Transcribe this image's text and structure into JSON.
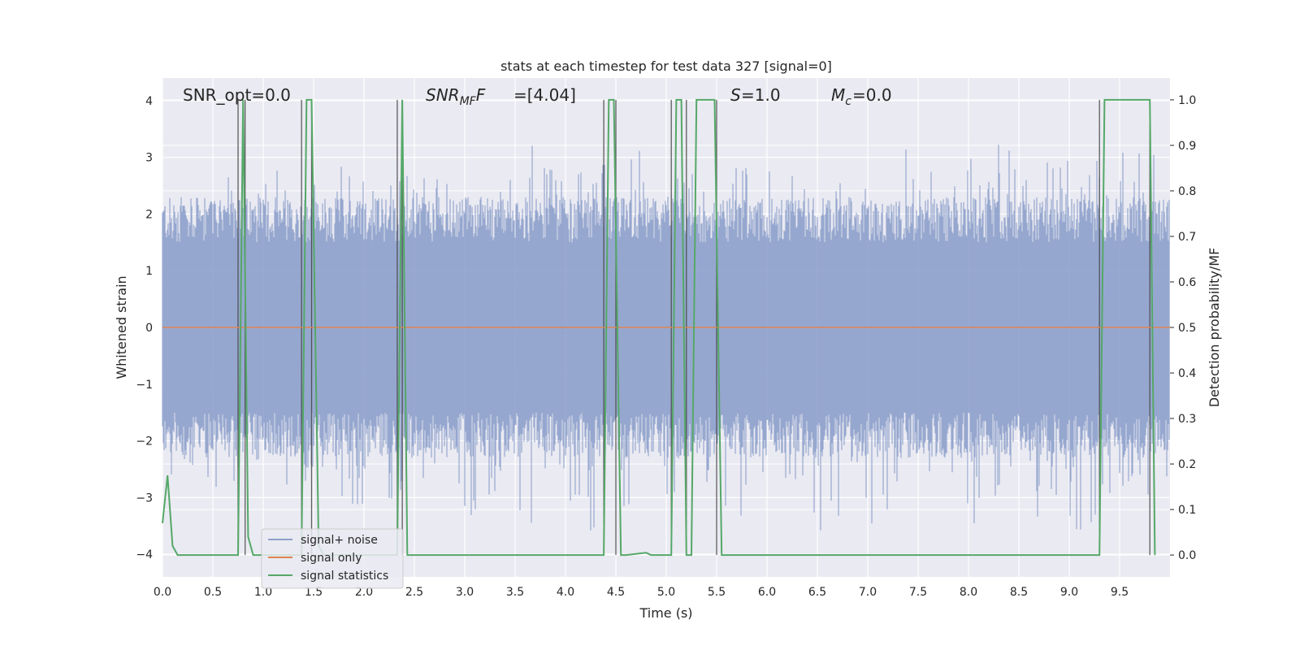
{
  "chart_data": {
    "type": "line",
    "title": "stats at each timestep for test data 327 [signal=0]",
    "xlabel": "Time (s)",
    "ylabel": "Whitened strain",
    "y2label": "Detection probability/MF",
    "xlim": [
      0.0,
      10.0
    ],
    "ylim": [
      -4.4,
      4.4
    ],
    "y2lim": [
      -0.048,
      1.048
    ],
    "x_ticks": [
      "0.0",
      "0.5",
      "1.0",
      "1.5",
      "2.0",
      "2.5",
      "3.0",
      "3.5",
      "4.0",
      "4.5",
      "5.0",
      "5.5",
      "6.0",
      "6.5",
      "7.0",
      "7.5",
      "8.0",
      "8.5",
      "9.0",
      "9.5"
    ],
    "y_ticks": [
      "−4",
      "−3",
      "−2",
      "−1",
      "0",
      "1",
      "2",
      "3",
      "4"
    ],
    "y2_ticks": [
      "0.0",
      "0.1",
      "0.2",
      "0.3",
      "0.4",
      "0.5",
      "0.6",
      "0.7",
      "0.8",
      "0.9",
      "1.0"
    ],
    "grid": true,
    "legend_placement": "lower-left",
    "annotations": {
      "snr_opt": "SNR_opt=0.0",
      "snr_mf": "=[4.04]",
      "s": "=1.0",
      "mc": "=0.0"
    },
    "series": [
      {
        "name": "signal+ noise",
        "color": "#8da0cb",
        "note_values": "dense noise band approx between -2 and +2, peaks to about ±4",
        "envelope_upper": [
          2.6,
          2.5,
          2.7,
          2.6,
          2.8,
          2.6,
          2.7,
          3.1,
          3.0,
          2.8,
          2.9,
          2.7,
          2.6,
          2.8,
          3.4,
          2.9,
          3.0,
          2.9,
          3.3,
          2.7,
          3.0,
          2.9,
          3.2,
          2.9,
          2.8,
          3.0,
          3.0,
          2.8,
          2.9,
          3.3,
          3.0,
          2.9,
          3.0,
          3.5,
          3.3,
          3.0,
          2.9,
          3.2,
          3.1,
          3.4
        ],
        "envelope_lower": [
          -3.0,
          -2.7,
          -3.0,
          -2.9,
          -3.2,
          -2.8,
          -3.0,
          -3.2,
          -2.9,
          -3.1,
          -2.9,
          -3.0,
          -3.4,
          -2.9,
          -3.7,
          -2.9,
          -3.1,
          -3.6,
          -3.3,
          -2.9,
          -3.2,
          -3.0,
          -3.4,
          -2.9,
          -3.0,
          -3.3,
          -3.6,
          -3.2,
          -3.5,
          -3.4,
          -3.0,
          -3.2,
          -3.6,
          -3.3,
          -3.7,
          -3.1,
          -3.6,
          -3.3,
          -3.2,
          -3.0
        ]
      },
      {
        "name": "signal only",
        "color": "#dd8452",
        "x": [
          0.0,
          10.0
        ],
        "y": [
          0.0,
          0.0
        ]
      },
      {
        "name": "signal statistics",
        "color": "#55a868",
        "axis": "right",
        "x": [
          0.0,
          0.05,
          0.1,
          0.15,
          0.75,
          0.8,
          0.85,
          0.9,
          0.95,
          1.38,
          1.43,
          1.48,
          1.55,
          1.6,
          2.33,
          2.38,
          2.43,
          4.38,
          4.43,
          4.48,
          4.55,
          4.6,
          4.8,
          4.85,
          5.05,
          5.1,
          5.15,
          5.2,
          5.25,
          5.3,
          5.35,
          5.48,
          5.55,
          5.6,
          9.3,
          9.35,
          9.8,
          9.85
        ],
        "y": [
          0.07,
          0.175,
          0.02,
          0.0,
          0.0,
          1.0,
          0.04,
          0.0,
          0.0,
          0.0,
          1.0,
          1.0,
          0.02,
          0.0,
          0.0,
          1.0,
          0.0,
          0.0,
          1.0,
          1.0,
          0.0,
          0.0,
          0.005,
          0.0,
          0.0,
          1.0,
          1.0,
          0.0,
          0.0,
          1.0,
          1.0,
          1.0,
          0.0,
          0.0,
          0.0,
          1.0,
          1.0,
          0.0
        ]
      }
    ],
    "vertical_markers": [
      0.75,
      0.82,
      1.38,
      1.48,
      2.33,
      2.38,
      4.38,
      4.5,
      5.05,
      5.2,
      5.5,
      9.3,
      9.8
    ]
  }
}
